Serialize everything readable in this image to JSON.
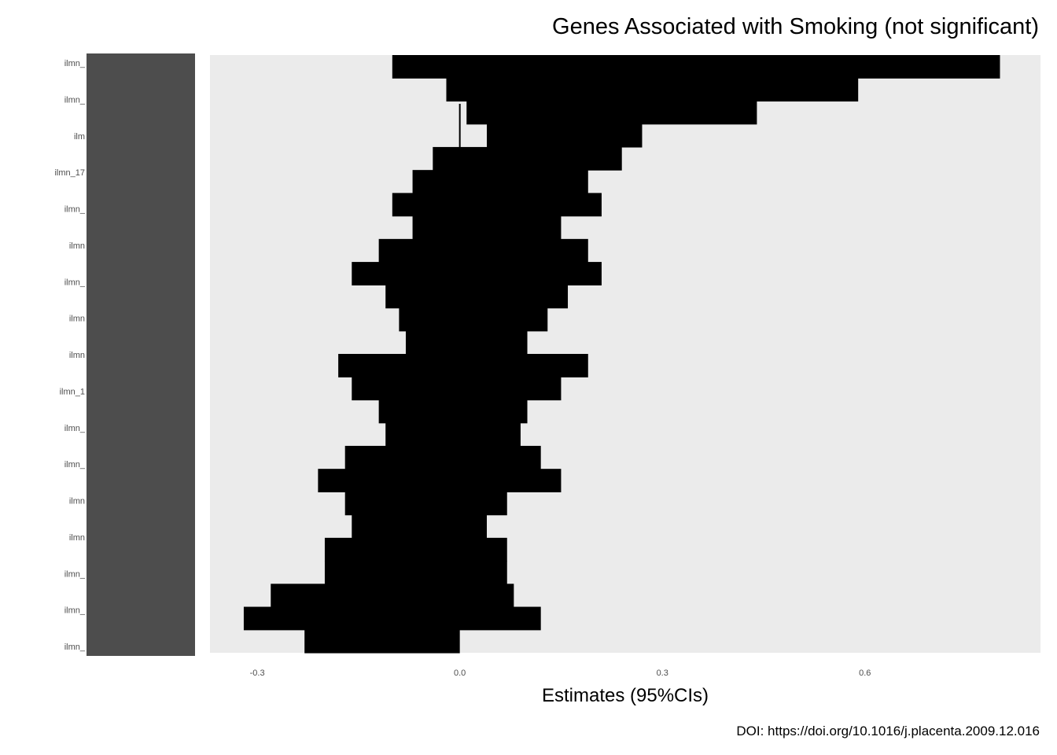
{
  "chart_data": {
    "type": "forest",
    "title": "Genes Associated with Smoking (not significant)",
    "xlabel": "Estimates (95%CIs)",
    "ylabel": "",
    "caption": "DOI: https://doi.org/10.1016/j.placenta.2009.12.016",
    "xlim": [
      -0.37,
      0.86
    ],
    "x_ticks": [
      -0.3,
      0.0,
      0.3,
      0.6
    ],
    "x_tick_labels": [
      "-0.3",
      "0.0",
      "0.3",
      "0.6"
    ],
    "grid": false,
    "panel_background": "#ebebeb",
    "bar_color": "#000000",
    "label_block_color": "#4d4d4d",
    "y_labels_visible": [
      "ilmn_",
      "ilmn_",
      "ilm",
      "ilmn_17",
      "ilmn_",
      "ilmn",
      "ilmn_",
      "ilmn",
      "ilmn",
      "ilmn_1",
      "ilmn_",
      "ilmn_",
      "ilmn",
      "ilmn",
      "ilmn_",
      "ilmn_",
      "ilmn_"
    ],
    "intervals": [
      {
        "lower": -0.1,
        "upper": 0.8
      },
      {
        "lower": -0.02,
        "upper": 0.59
      },
      {
        "lower": 0.01,
        "upper": 0.44
      },
      {
        "lower": 0.04,
        "upper": 0.27
      },
      {
        "lower": -0.04,
        "upper": 0.24
      },
      {
        "lower": -0.07,
        "upper": 0.19
      },
      {
        "lower": -0.1,
        "upper": 0.21
      },
      {
        "lower": -0.07,
        "upper": 0.15
      },
      {
        "lower": -0.12,
        "upper": 0.19
      },
      {
        "lower": -0.16,
        "upper": 0.21
      },
      {
        "lower": -0.11,
        "upper": 0.16
      },
      {
        "lower": -0.09,
        "upper": 0.13
      },
      {
        "lower": -0.08,
        "upper": 0.1
      },
      {
        "lower": -0.18,
        "upper": 0.19
      },
      {
        "lower": -0.16,
        "upper": 0.15
      },
      {
        "lower": -0.12,
        "upper": 0.1
      },
      {
        "lower": -0.11,
        "upper": 0.09
      },
      {
        "lower": -0.17,
        "upper": 0.12
      },
      {
        "lower": -0.21,
        "upper": 0.15
      },
      {
        "lower": -0.17,
        "upper": 0.07
      },
      {
        "lower": -0.16,
        "upper": 0.04
      },
      {
        "lower": -0.2,
        "upper": 0.07
      },
      {
        "lower": -0.2,
        "upper": 0.07
      },
      {
        "lower": -0.28,
        "upper": 0.08
      },
      {
        "lower": -0.32,
        "upper": 0.12
      },
      {
        "lower": -0.23,
        "upper": 0.0
      }
    ]
  }
}
